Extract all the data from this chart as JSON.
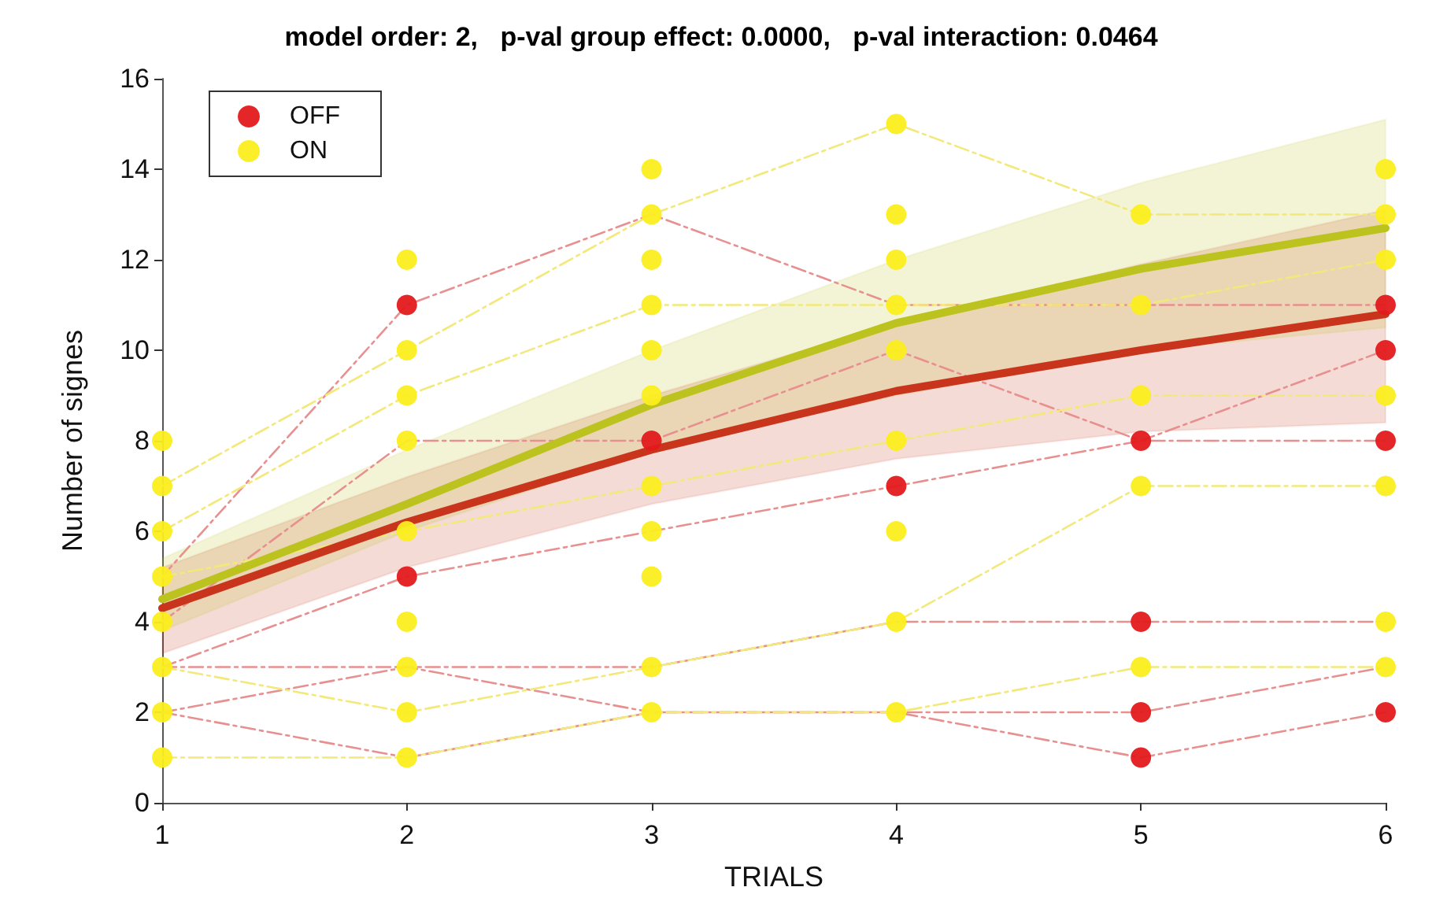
{
  "chart_data": {
    "type": "scatter",
    "title": "model order: 2,   p-val group effect: 0.0000,   p-val interaction: 0.0464",
    "xlabel": "TRIALS",
    "ylabel": "Number of signes",
    "xlim": [
      1,
      6
    ],
    "xticks": [
      1,
      2,
      3,
      4,
      5,
      6
    ],
    "ylim": [
      0,
      16
    ],
    "yticks": [
      0,
      2,
      4,
      6,
      8,
      10,
      12,
      14,
      16
    ],
    "legend": "top left",
    "series": [
      {
        "type": "line",
        "color": "#e89090",
        "line_style": "dashed",
        "marker": "none",
        "x": [
          1,
          2,
          3,
          4,
          5,
          6
        ],
        "values": [
          2,
          1,
          2,
          2,
          1,
          2
        ]
      },
      {
        "type": "line",
        "color": "#e89090",
        "line_style": "dashed",
        "marker": "none",
        "x": [
          1,
          2,
          3,
          4,
          5,
          6
        ],
        "values": [
          3,
          3,
          2,
          2,
          2,
          3
        ]
      },
      {
        "type": "line",
        "color": "#e89090",
        "line_style": "dashed",
        "marker": "none",
        "x": [
          1,
          2,
          3,
          4,
          5,
          6
        ],
        "values": [
          3,
          5,
          6,
          7,
          8,
          8
        ]
      },
      {
        "type": "line",
        "color": "#e89090",
        "line_style": "dashed",
        "marker": "none",
        "x": [
          1,
          2,
          3,
          4,
          5,
          6
        ],
        "values": [
          5,
          11,
          13,
          11,
          11,
          11
        ]
      },
      {
        "type": "line",
        "color": "#e89090",
        "line_style": "dashed",
        "marker": "none",
        "x": [
          1,
          2,
          3,
          4,
          5,
          6
        ],
        "values": [
          4,
          8,
          8,
          10,
          8,
          10
        ]
      },
      {
        "type": "line",
        "color": "#e89090",
        "line_style": "dashed",
        "marker": "none",
        "x": [
          1,
          2,
          3,
          4,
          5,
          6
        ],
        "values": [
          2,
          3,
          3,
          4,
          4,
          4
        ]
      },
      {
        "type": "line",
        "color": "#f2e97a",
        "line_style": "dashed",
        "marker": "none",
        "x": [
          1,
          2,
          3,
          4,
          5,
          6
        ],
        "values": [
          7,
          10,
          13,
          15,
          13,
          13
        ]
      },
      {
        "type": "line",
        "color": "#f2e97a",
        "line_style": "dashed",
        "marker": "none",
        "x": [
          1,
          2,
          3,
          4,
          5,
          6
        ],
        "values": [
          1,
          1,
          2,
          2,
          3,
          3
        ]
      },
      {
        "type": "line",
        "color": "#f2e97a",
        "line_style": "dashed",
        "marker": "none",
        "x": [
          1,
          2,
          3,
          4,
          5,
          6
        ],
        "values": [
          6,
          9,
          11,
          11,
          11,
          12
        ]
      },
      {
        "type": "line",
        "color": "#f2e97a",
        "line_style": "dashed",
        "marker": "none",
        "x": [
          1,
          2,
          3,
          4,
          5,
          6
        ],
        "values": [
          3,
          2,
          3,
          4,
          7,
          7
        ]
      },
      {
        "type": "line",
        "color": "#f2e97a",
        "line_style": "dashed",
        "marker": "none",
        "x": [
          1,
          2,
          3,
          4,
          5,
          6
        ],
        "values": [
          5,
          6,
          7,
          8,
          9,
          9
        ]
      },
      {
        "type": "line",
        "color": "#c8351c",
        "line_style": "solid",
        "marker": "none",
        "x": [
          1,
          2,
          3,
          4,
          5,
          6
        ],
        "values": [
          4.3,
          6.2,
          7.8,
          9.1,
          10.0,
          10.8
        ],
        "lower": [
          3.3,
          5.2,
          6.6,
          7.6,
          8.2,
          8.4
        ],
        "upper": [
          5.2,
          7.2,
          9.0,
          10.6,
          11.9,
          13.1
        ]
      },
      {
        "type": "line",
        "color": "#bcc21e",
        "line_style": "solid",
        "marker": "none",
        "x": [
          1,
          2,
          3,
          4,
          5,
          6
        ],
        "values": [
          4.5,
          6.6,
          8.8,
          10.6,
          11.8,
          12.7
        ],
        "lower": [
          3.8,
          6.0,
          7.8,
          9.0,
          10.0,
          10.5
        ],
        "upper": [
          5.4,
          7.8,
          10.0,
          12.0,
          13.7,
          15.1
        ]
      },
      {
        "name": "OFF",
        "color": "#e31a1c",
        "marker": "circle",
        "x": [
          2,
          2,
          3,
          4,
          5,
          5,
          5,
          5,
          6,
          6,
          6,
          6
        ],
        "values": [
          11,
          5,
          8,
          7,
          8,
          4,
          2,
          1,
          11,
          10,
          8,
          2
        ]
      },
      {
        "name": "ON",
        "color": "#fbee1e",
        "marker": "circle",
        "x": [
          1,
          1,
          1,
          1,
          1,
          1,
          1,
          1,
          2,
          2,
          2,
          2,
          2,
          2,
          2,
          2,
          2,
          3,
          3,
          3,
          3,
          3,
          3,
          3,
          3,
          3,
          3,
          3,
          4,
          4,
          4,
          4,
          4,
          4,
          4,
          4,
          4,
          5,
          5,
          5,
          5,
          5,
          6,
          6,
          6,
          6,
          6,
          6,
          6
        ],
        "values": [
          8,
          7,
          6,
          5,
          4,
          3,
          2,
          1,
          12,
          10,
          9,
          8,
          6,
          4,
          3,
          2,
          1,
          14,
          13,
          12,
          11,
          10,
          9,
          7,
          6,
          5,
          3,
          2,
          15,
          13,
          12,
          11,
          10,
          8,
          6,
          4,
          2,
          13,
          11,
          9,
          7,
          3,
          14,
          13,
          12,
          9,
          7,
          4,
          3
        ]
      }
    ]
  }
}
